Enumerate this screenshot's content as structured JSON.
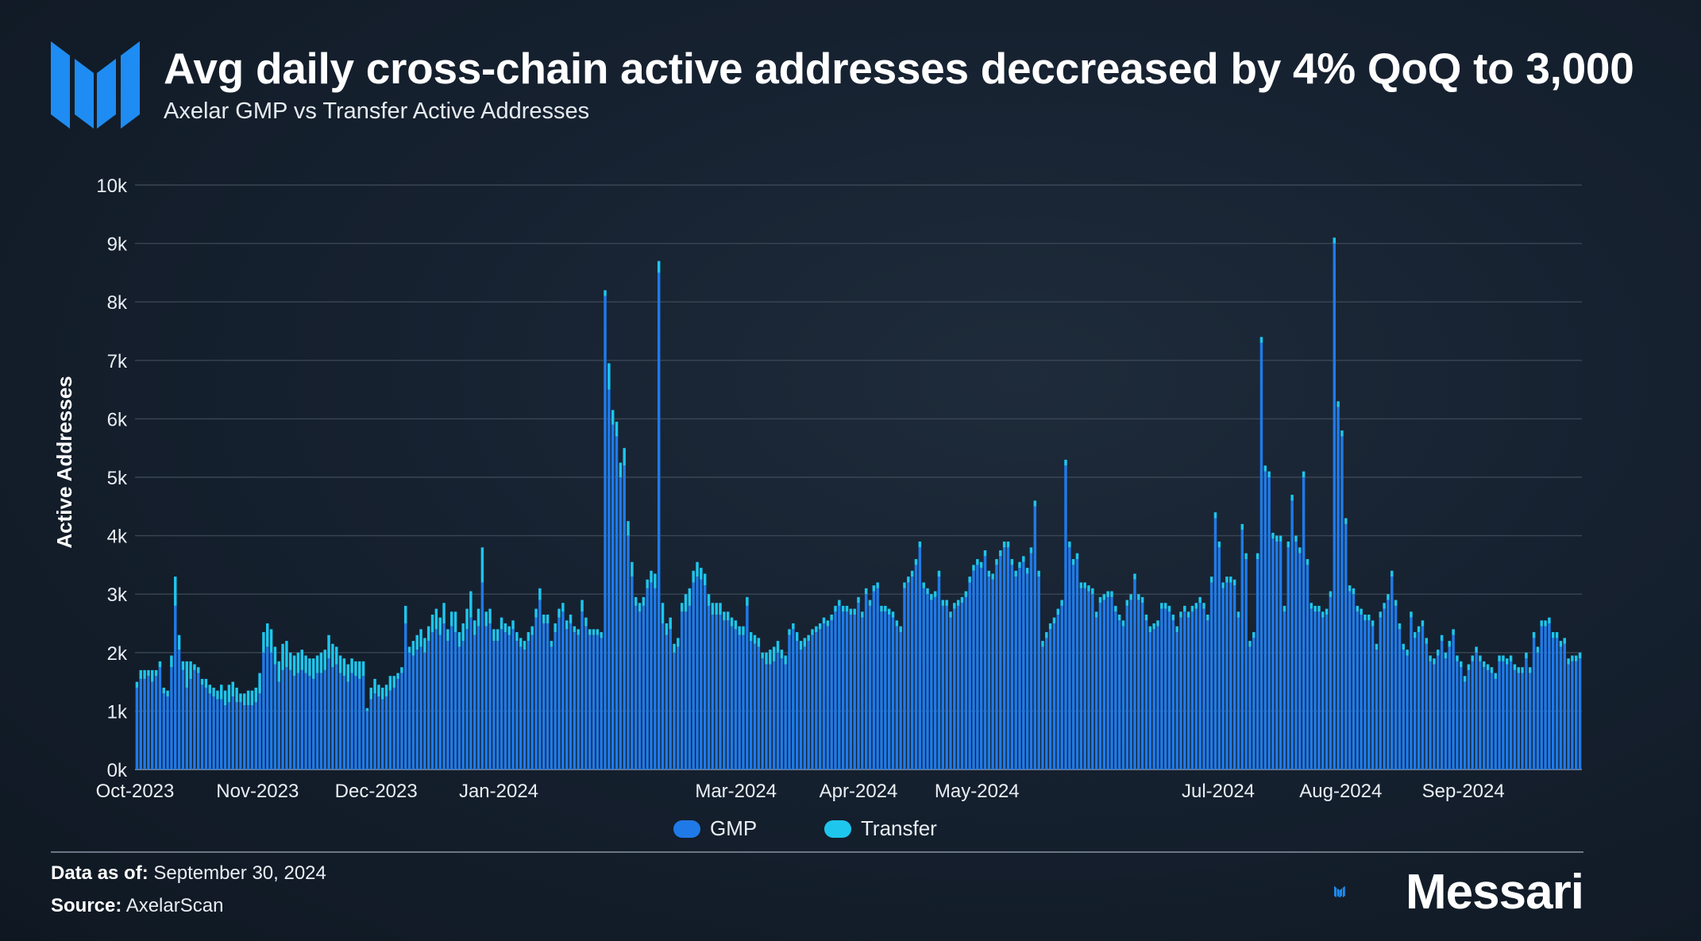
{
  "header": {
    "title": "Avg daily cross-chain active addresses deccreased by 4% QoQ to 3,000",
    "subtitle": "Axelar GMP vs Transfer Active Addresses"
  },
  "footer": {
    "data_as_of_label": "Data as of:",
    "data_as_of_value": "September 30, 2024",
    "source_label": "Source:",
    "source_value": "AxelarScan",
    "brand": "Messari"
  },
  "colors": {
    "gmp": "#1f7ae8",
    "transfer": "#1ec6ee",
    "grid": "#3a4654",
    "axis_text": "#e9eef3",
    "brand_blue": "#1e8cf2"
  },
  "chart_data": {
    "type": "bar",
    "stacked": true,
    "title": "Avg daily cross-chain active addresses deccreased by 4% QoQ to 3,000",
    "subtitle": "Axelar GMP vs Transfer Active Addresses",
    "xlabel": "",
    "ylabel": "Active Addresses",
    "ylim": [
      0,
      10000
    ],
    "yticks": [
      {
        "value": 0,
        "label": "0k"
      },
      {
        "value": 1000,
        "label": "1k"
      },
      {
        "value": 2000,
        "label": "2k"
      },
      {
        "value": 3000,
        "label": "3k"
      },
      {
        "value": 4000,
        "label": "4k"
      },
      {
        "value": 5000,
        "label": "5k"
      },
      {
        "value": 6000,
        "label": "6k"
      },
      {
        "value": 7000,
        "label": "7k"
      },
      {
        "value": 8000,
        "label": "8k"
      },
      {
        "value": 9000,
        "label": "9k"
      },
      {
        "value": 10000,
        "label": "10k"
      }
    ],
    "xticks": [
      {
        "date": "2023-10-01",
        "label": "Oct-2023"
      },
      {
        "date": "2023-11-01",
        "label": "Nov-2023"
      },
      {
        "date": "2023-12-01",
        "label": "Dec-2023"
      },
      {
        "date": "2024-01-01",
        "label": "Jan-2024"
      },
      {
        "date": "2024-03-01",
        "label": "Mar-2024"
      },
      {
        "date": "2024-04-01",
        "label": "Apr-2024"
      },
      {
        "date": "2024-05-01",
        "label": "May-2024"
      },
      {
        "date": "2024-07-01",
        "label": "Jul-2024"
      },
      {
        "date": "2024-08-01",
        "label": "Aug-2024"
      },
      {
        "date": "2024-09-01",
        "label": "Sep-2024"
      }
    ],
    "grid": true,
    "legend": "bottom-center",
    "start_date": "2023-10-01",
    "end_date": "2024-09-30",
    "series": [
      {
        "name": "GMP",
        "color": "#1f7ae8",
        "values": [
          1400,
          1550,
          1550,
          1600,
          1500,
          1600,
          1750,
          1300,
          1250,
          1750,
          2800,
          2050,
          1700,
          1400,
          1550,
          1700,
          1650,
          1450,
          1400,
          1300,
          1250,
          1200,
          1200,
          1100,
          1150,
          1250,
          1150,
          1150,
          1100,
          1100,
          1100,
          1150,
          1300,
          2000,
          2100,
          2000,
          1800,
          1500,
          1700,
          1750,
          1700,
          1600,
          1650,
          1700,
          1650,
          1600,
          1550,
          1650,
          1650,
          1700,
          1900,
          1750,
          1800,
          1650,
          1600,
          1500,
          1650,
          1600,
          1550,
          1600,
          1000,
          1200,
          1300,
          1250,
          1200,
          1250,
          1350,
          1400,
          1550,
          1650,
          2500,
          2000,
          1950,
          2050,
          2100,
          2000,
          2200,
          2350,
          2400,
          2300,
          2500,
          2200,
          2450,
          2350,
          2100,
          2200,
          2400,
          2600,
          2300,
          2450,
          3200,
          2450,
          2500,
          2200,
          2200,
          2400,
          2350,
          2300,
          2400,
          2200,
          2100,
          2050,
          2200,
          2300,
          2600,
          2900,
          2500,
          2500,
          2100,
          2350,
          2600,
          2700,
          2400,
          2500,
          2350,
          2300,
          2700,
          2450,
          2300,
          2300,
          2300,
          2250,
          8100,
          6500,
          5900,
          5700,
          5000,
          5200,
          4000,
          3300,
          2800,
          2700,
          2800,
          3100,
          3200,
          3100,
          8500,
          2500,
          2300,
          2400,
          2000,
          2100,
          2700,
          2700,
          2800,
          3200,
          3300,
          3250,
          3150,
          2800,
          2650,
          2650,
          2650,
          2550,
          2550,
          2450,
          2400,
          2300,
          2300,
          2800,
          2200,
          2150,
          2100,
          1900,
          1800,
          1800,
          1850,
          2000,
          1900,
          1800,
          2300,
          2400,
          2200,
          2050,
          2100,
          2200,
          2300,
          2350,
          2400,
          2500,
          2450,
          2550,
          2700,
          2800,
          2700,
          2700,
          2650,
          2650,
          2850,
          2600,
          3000,
          2800,
          3050,
          3100,
          2700,
          2700,
          2650,
          2600,
          2450,
          2350,
          3100,
          3200,
          3300,
          3500,
          3800,
          3100,
          3000,
          2900,
          2950,
          3300,
          2800,
          2800,
          2600,
          2750,
          2800,
          2850,
          2950,
          3200,
          3400,
          3500,
          3450,
          3650,
          3300,
          3250,
          3500,
          3650,
          3800,
          3800,
          3500,
          3300,
          3450,
          3550,
          3350,
          3700,
          4500,
          3300,
          2100,
          2250,
          2400,
          2500,
          2650,
          2800,
          5200,
          3800,
          3500,
          3600,
          3100,
          3100,
          3050,
          3000,
          2600,
          2850,
          2900,
          2950,
          2950,
          2700,
          2550,
          2450,
          2800,
          2900,
          3250,
          2900,
          2850,
          2550,
          2350,
          2400,
          2450,
          2750,
          2750,
          2700,
          2550,
          2350,
          2600,
          2700,
          2600,
          2700,
          2750,
          2850,
          2750,
          2550,
          3200,
          4300,
          3800,
          3100,
          3200,
          3200,
          3150,
          2600,
          4100,
          3600,
          2100,
          2250,
          3600,
          7300,
          5100,
          5000,
          3950,
          3900,
          3900,
          2700,
          3800,
          4600,
          3900,
          3700,
          5000,
          3500,
          2750,
          2700,
          2700,
          2600,
          2650,
          2950,
          9000,
          6200,
          5700,
          4200,
          3050,
          3000,
          2700,
          2650,
          2550,
          2550,
          2450,
          2050,
          2600,
          2750,
          2900,
          3300,
          2800,
          2400,
          2050,
          1950,
          2600,
          2250,
          2350,
          2450,
          2150,
          1850,
          1800,
          1950,
          2200,
          1900,
          2100,
          2300,
          1850,
          1750,
          1500,
          1700,
          1850,
          2000,
          1850,
          1750,
          1700,
          1650,
          1550,
          1850,
          1850,
          1800,
          1850,
          1700,
          1650,
          1650,
          1900,
          1650,
          2250,
          2000,
          2450,
          2450,
          2500,
          2250,
          2250,
          2100,
          2150,
          1800,
          1850,
          1850,
          1900
        ]
      },
      {
        "name": "Transfer",
        "color": "#1ec6ee",
        "values": [
          100,
          150,
          150,
          100,
          200,
          100,
          100,
          100,
          100,
          200,
          500,
          250,
          150,
          450,
          300,
          100,
          100,
          100,
          150,
          150,
          150,
          150,
          250,
          250,
          300,
          250,
          250,
          150,
          200,
          250,
          250,
          250,
          350,
          350,
          400,
          400,
          300,
          350,
          450,
          450,
          300,
          350,
          350,
          350,
          300,
          300,
          350,
          300,
          350,
          350,
          400,
          400,
          300,
          300,
          300,
          300,
          250,
          250,
          300,
          250,
          50,
          200,
          250,
          200,
          200,
          200,
          250,
          200,
          100,
          100,
          300,
          100,
          250,
          250,
          300,
          250,
          250,
          300,
          350,
          300,
          350,
          200,
          250,
          350,
          250,
          300,
          350,
          450,
          250,
          300,
          600,
          250,
          250,
          200,
          200,
          200,
          150,
          150,
          150,
          150,
          150,
          150,
          150,
          150,
          150,
          200,
          150,
          150,
          100,
          150,
          150,
          150,
          150,
          150,
          100,
          100,
          200,
          150,
          100,
          100,
          100,
          100,
          100,
          450,
          250,
          250,
          250,
          300,
          250,
          250,
          150,
          150,
          150,
          150,
          200,
          250,
          200,
          350,
          200,
          200,
          150,
          150,
          150,
          300,
          300,
          200,
          250,
          200,
          200,
          200,
          200,
          200,
          200,
          150,
          150,
          150,
          150,
          150,
          150,
          150,
          150,
          150,
          150,
          100,
          200,
          250,
          250,
          200,
          150,
          150,
          100,
          100,
          150,
          150,
          150,
          100,
          100,
          100,
          100,
          100,
          100,
          100,
          100,
          100,
          100,
          100,
          100,
          100,
          100,
          100,
          100,
          100,
          100,
          100,
          100,
          100,
          100,
          100,
          100,
          100,
          100,
          100,
          100,
          100,
          100,
          100,
          100,
          100,
          100,
          100,
          100,
          100,
          100,
          100,
          100,
          100,
          100,
          100,
          100,
          100,
          100,
          100,
          100,
          100,
          100,
          100,
          100,
          100,
          100,
          100,
          100,
          100,
          100,
          100,
          100,
          100,
          100,
          100,
          100,
          100,
          100,
          100,
          100,
          100,
          100,
          100,
          100,
          100,
          100,
          100,
          100,
          100,
          100,
          100,
          100,
          100,
          100,
          100,
          100,
          100,
          100,
          100,
          100,
          100,
          100,
          100,
          100,
          100,
          100,
          100,
          100,
          100,
          100,
          100,
          100,
          100,
          100,
          100,
          100,
          100,
          100,
          100,
          100,
          100,
          100,
          100,
          100,
          100,
          100,
          100,
          100,
          100,
          100,
          100,
          100,
          100,
          100,
          100,
          100,
          100,
          100,
          100,
          100,
          100,
          100,
          100,
          100,
          100,
          100,
          100,
          100,
          100,
          100,
          100,
          100,
          100,
          100,
          100,
          100,
          100,
          100,
          100,
          100,
          100,
          100,
          100,
          100,
          100,
          100,
          100,
          100,
          100,
          100,
          100,
          100,
          100,
          100,
          100,
          100,
          100,
          100,
          100,
          100,
          100,
          100,
          100,
          100,
          100,
          100,
          100,
          100,
          100,
          100,
          100,
          100,
          100,
          100,
          100,
          100,
          100,
          100,
          100,
          100,
          100,
          100,
          100,
          100,
          100,
          100,
          100,
          100,
          100,
          100,
          100,
          100,
          100,
          100,
          100,
          100,
          100,
          100,
          100
        ]
      }
    ]
  }
}
